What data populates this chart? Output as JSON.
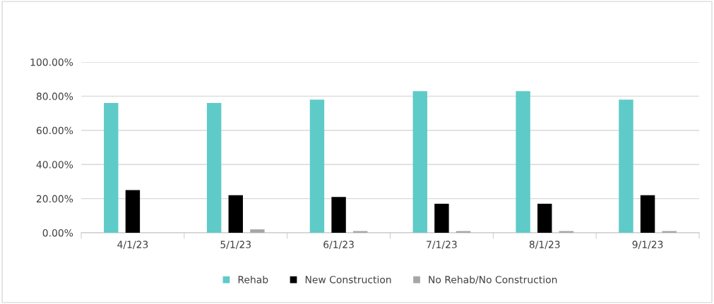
{
  "chart_data": {
    "type": "bar",
    "categories": [
      "4/1/23",
      "5/1/23",
      "6/1/23",
      "7/1/23",
      "8/1/23",
      "9/1/23"
    ],
    "series": [
      {
        "name": "Rehab",
        "color": "#5ecbc8",
        "values": [
          76,
          76,
          78,
          83,
          83,
          78
        ]
      },
      {
        "name": "New Construction",
        "color": "#000000",
        "values": [
          25,
          22,
          21,
          17,
          17,
          22
        ]
      },
      {
        "name": "No Rehab/No Construction",
        "color": "#a6a6a6",
        "values": [
          0,
          2,
          1,
          1,
          1,
          1
        ]
      }
    ],
    "ylim": [
      0,
      100
    ],
    "yticks": [
      {
        "value": 0,
        "label": "0.00%"
      },
      {
        "value": 20,
        "label": "20.00%"
      },
      {
        "value": 40,
        "label": "40.00%"
      },
      {
        "value": 60,
        "label": "60.00%"
      },
      {
        "value": 80,
        "label": "80.00%"
      },
      {
        "value": 100,
        "label": "100.00%"
      }
    ],
    "grid": "y",
    "legend": "bottom"
  }
}
